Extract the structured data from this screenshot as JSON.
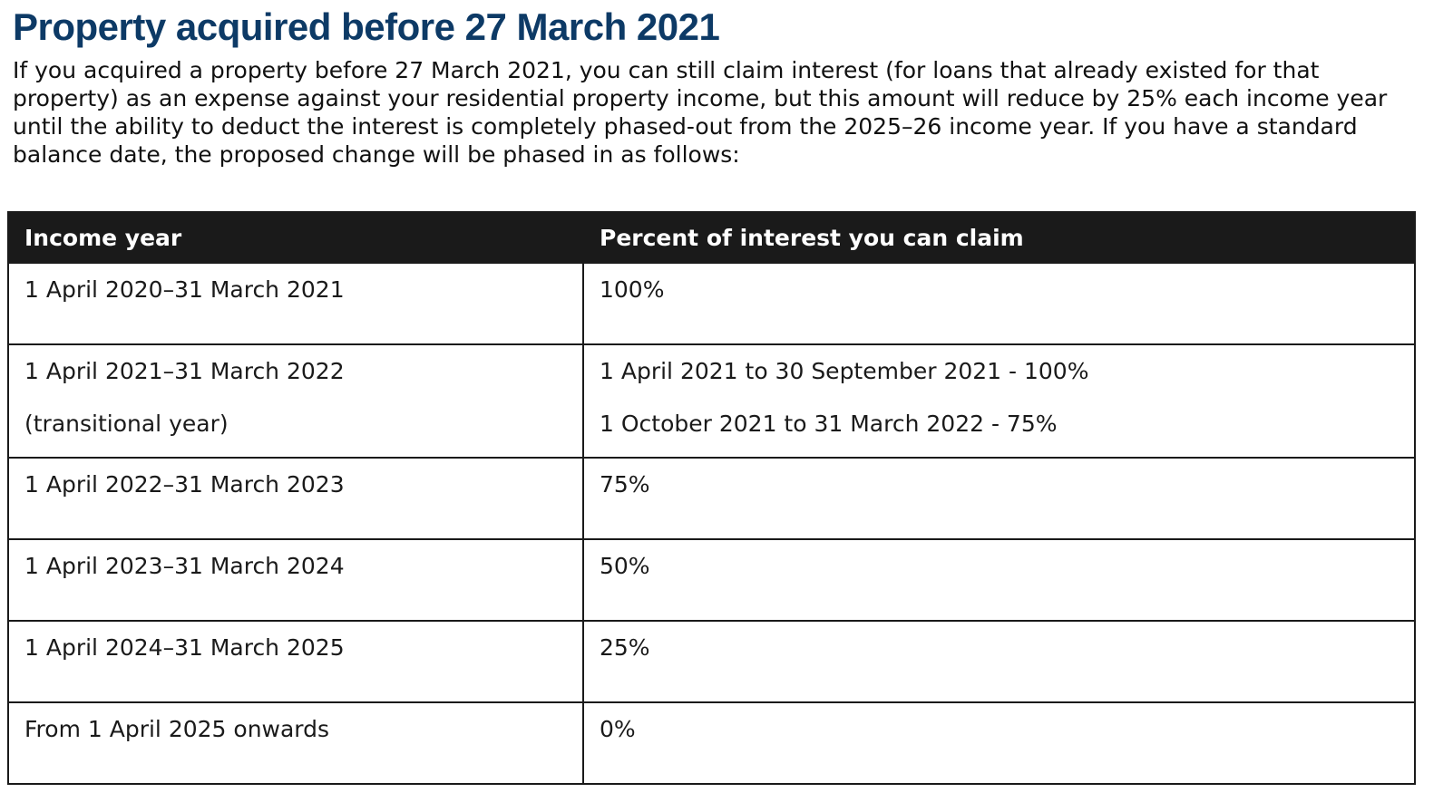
{
  "heading": "Property acquired before 27 March 2021",
  "intro": "If you acquired a property before 27 March 2021, you can still claim interest (for loans that already existed for that property) as an expense against your residential property income, but this amount will reduce by 25% each income year until the ability to deduct the interest is completely phased-out from the 2025–26 income year. If you have a standard balance date, the proposed change will be phased in as follows:",
  "table": {
    "headers": [
      "Income year",
      "Percent of interest you can claim"
    ],
    "rows": [
      {
        "year": "1 April 2020–31 March 2021",
        "percent": "100%"
      },
      {
        "year": "1 April 2021–31 March 2022",
        "year_note": "(transitional year)",
        "percent": "1 April 2021 to 30 September 2021 - 100%",
        "percent_line2": "1 October 2021 to 31 March 2022 - 75%"
      },
      {
        "year": "1 April 2022–31 March 2023",
        "percent": "75%"
      },
      {
        "year": "1 April 2023–31 March 2024",
        "percent": "50%"
      },
      {
        "year": "1 April 2024–31 March 2025",
        "percent": "25%"
      },
      {
        "year": "From 1 April 2025 onwards",
        "percent": "0%"
      }
    ]
  },
  "colors": {
    "heading": "#0d3a66",
    "header_bg": "#1a1a1a",
    "header_text": "#ffffff",
    "border": "#1a1a1a"
  }
}
